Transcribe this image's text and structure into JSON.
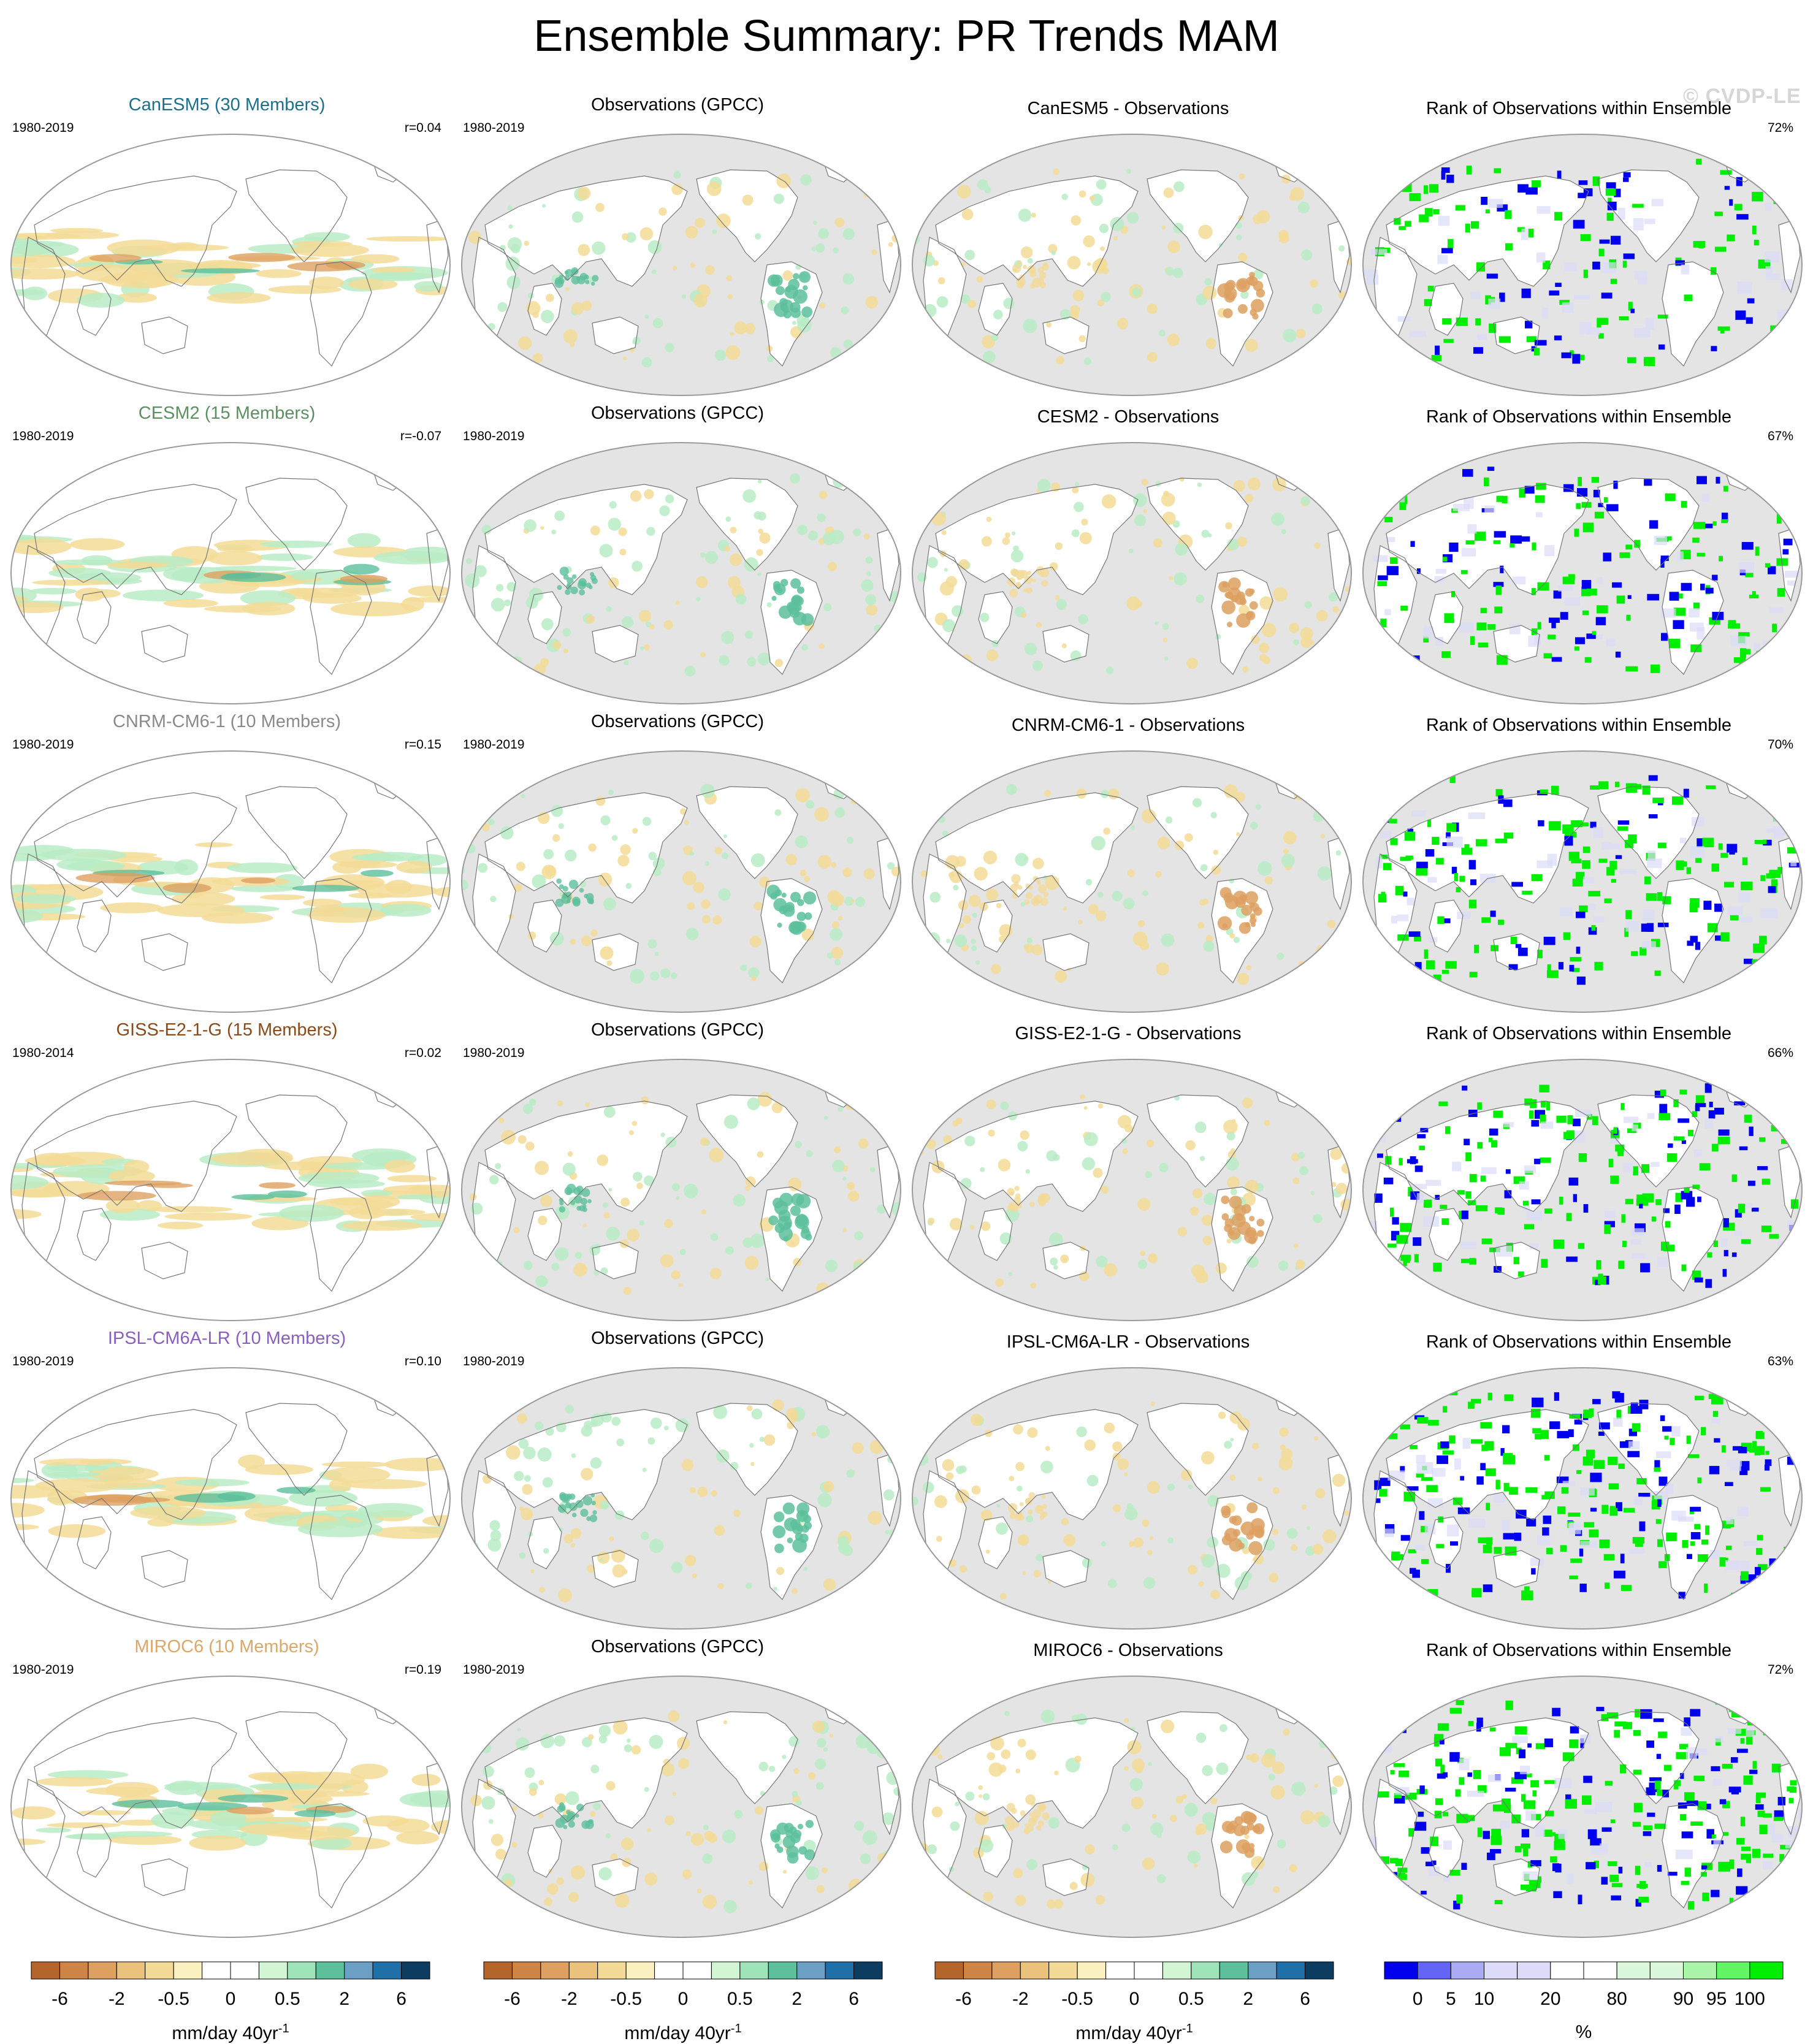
{
  "title": "Ensemble Summary: PR Trends MAM",
  "watermark": "© CVDP-LE",
  "rows": [
    {
      "model_title": "CanESM5 (30 Members)",
      "color": "#1f6f8b",
      "years": "1980-2019",
      "r": "r=0.04",
      "obs_years": "1980-2019",
      "obs_title": "Observations (GPCC)",
      "diff_title": "CanESM5 - Observations",
      "rank_title": "Rank of Observations within Ensemble",
      "rank_pct": "72%"
    },
    {
      "model_title": "CESM2 (15 Members)",
      "color": "#5e8f63",
      "years": "1980-2019",
      "r": "r=-0.07",
      "obs_years": "1980-2019",
      "obs_title": "Observations (GPCC)",
      "diff_title": "CESM2 - Observations",
      "rank_title": "Rank of Observations within Ensemble",
      "rank_pct": "67%"
    },
    {
      "model_title": "CNRM-CM6-1 (10 Members)",
      "color": "#8a8a8a",
      "years": "1980-2019",
      "r": "r=0.15",
      "obs_years": "1980-2019",
      "obs_title": "Observations (GPCC)",
      "diff_title": "CNRM-CM6-1 - Observations",
      "rank_title": "Rank of Observations within Ensemble",
      "rank_pct": "70%"
    },
    {
      "model_title": "GISS-E2-1-G (15 Members)",
      "color": "#8b4a1a",
      "years": "1980-2014",
      "r": "r=0.02",
      "obs_years": "1980-2019",
      "obs_title": "Observations (GPCC)",
      "diff_title": "GISS-E2-1-G - Observations",
      "rank_title": "Rank of Observations within Ensemble",
      "rank_pct": "66%"
    },
    {
      "model_title": "IPSL-CM6A-LR (10 Members)",
      "color": "#8a5fc0",
      "years": "1980-2019",
      "r": "r=0.10",
      "obs_years": "1980-2019",
      "obs_title": "Observations (GPCC)",
      "diff_title": "IPSL-CM6A-LR - Observations",
      "rank_title": "Rank of Observations within Ensemble",
      "rank_pct": "63%"
    },
    {
      "model_title": "MIROC6 (10 Members)",
      "color": "#d9a86a",
      "years": "1980-2019",
      "r": "r=0.19",
      "obs_years": "1980-2019",
      "obs_title": "Observations (GPCC)",
      "diff_title": "MIROC6 - Observations",
      "rank_title": "Rank of Observations within Ensemble",
      "rank_pct": "72%"
    }
  ],
  "colorbars": {
    "trend": {
      "colors": [
        "#b5652a",
        "#cd8445",
        "#dda060",
        "#ebc27c",
        "#f3da97",
        "#fbf0c0",
        "#ffffff",
        "#ffffff",
        "#d2f5d3",
        "#9fe3b8",
        "#5dbf9c",
        "#6b9fc4",
        "#1f6fa8",
        "#0c3c60"
      ],
      "ticks": [
        "-6",
        "-2",
        "-0.5",
        "0",
        "0.5",
        "2",
        "6"
      ],
      "label": "mm/day 40yr",
      "label_sup": "-1"
    },
    "rank": {
      "colors": [
        "#0000ee",
        "#6464f5",
        "#aaaaf5",
        "#dcdcf8",
        "#dcdcf8",
        "#ffffff",
        "#ffffff",
        "#dcf8dc",
        "#dcf8dc",
        "#aaf5aa",
        "#64f564",
        "#00ee00"
      ],
      "ticks": [
        "0",
        "5",
        "10",
        "20",
        "80",
        "90",
        "95",
        "100"
      ],
      "label": "%"
    }
  },
  "map_colors": {
    "ocean_grey": "#e4e4e4",
    "dry": "#f3da97",
    "dry_strong": "#dda060",
    "wet": "#b9ecc6",
    "wet_strong": "#5dbf9c",
    "rank_low": "#0000ee",
    "rank_high": "#00ee00"
  }
}
